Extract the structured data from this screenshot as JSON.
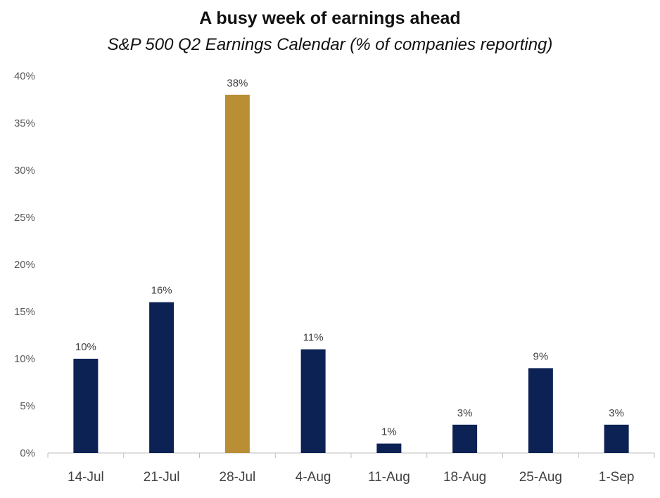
{
  "chart_data": {
    "type": "bar",
    "title": "A busy week of earnings ahead",
    "subtitle": "S&P 500 Q2 Earnings Calendar (% of companies reporting)",
    "xlabel": "",
    "ylabel": "",
    "categories": [
      "14-Jul",
      "21-Jul",
      "28-Jul",
      "4-Aug",
      "11-Aug",
      "18-Aug",
      "25-Aug",
      "1-Sep"
    ],
    "values": [
      10,
      16,
      38,
      11,
      1,
      3,
      9,
      3
    ],
    "value_labels": [
      "10%",
      "16%",
      "38%",
      "11%",
      "1%",
      "3%",
      "9%",
      "3%"
    ],
    "highlight_index": 2,
    "ylim": [
      0,
      40
    ],
    "yticks": [
      0,
      5,
      10,
      15,
      20,
      25,
      30,
      35,
      40
    ],
    "ytick_labels": [
      "0%",
      "5%",
      "10%",
      "15%",
      "20%",
      "25%",
      "30%",
      "35%",
      "40%"
    ],
    "grid": false,
    "legend": "none",
    "colors": {
      "bar": "#0d2254",
      "highlight": "#b98e35",
      "axis": "#bfbfbf"
    }
  }
}
